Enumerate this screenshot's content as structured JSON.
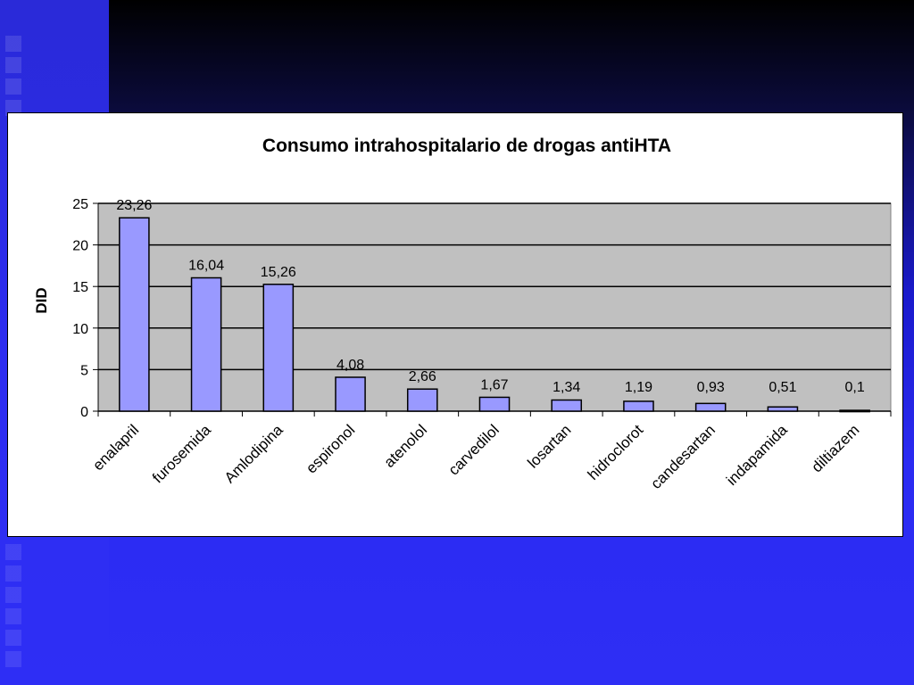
{
  "chart_data": {
    "type": "bar",
    "title": "Consumo intrahospitalario de drogas antiHTA",
    "ylabel": "DID",
    "xlabel": "",
    "categories": [
      "enalapril",
      "furosemida",
      "Amlodipina",
      "espironol",
      "atenolol",
      "carvedilol",
      "losartan",
      "hidroclorot",
      "candesartan",
      "indapamida",
      "diltiazem"
    ],
    "values": [
      23.26,
      16.04,
      15.26,
      4.08,
      2.66,
      1.67,
      1.34,
      1.19,
      0.93,
      0.51,
      0.1
    ],
    "data_labels": [
      "23,26",
      "16,04",
      "15,26",
      "4,08",
      "2,66",
      "1,67",
      "1,34",
      "1,19",
      "0,93",
      "0,51",
      "0,1"
    ],
    "y_ticks": [
      "0",
      "5",
      "10",
      "15",
      "20",
      "25"
    ],
    "ylim": [
      0,
      25
    ],
    "grid": true,
    "legend": "none",
    "colors": {
      "bar_fill": "#9999ff",
      "bar_stroke": "#000000",
      "plot_background": "#c0c0c0"
    }
  }
}
